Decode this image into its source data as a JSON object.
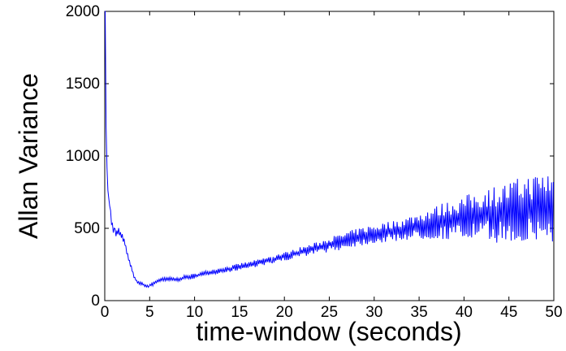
{
  "chart_data": {
    "type": "line",
    "title": "",
    "xlabel": "time-window (seconds)",
    "ylabel": "Allan Variance",
    "xlim": [
      0,
      50
    ],
    "ylim": [
      0,
      2000
    ],
    "xticks": [
      0,
      5,
      10,
      15,
      20,
      25,
      30,
      35,
      40,
      45,
      50
    ],
    "yticks": [
      0,
      500,
      1000,
      1500,
      2000
    ],
    "x_tick_labels": [
      "0",
      "5",
      "10",
      "15",
      "20",
      "25",
      "30",
      "35",
      "40",
      "45",
      "50"
    ],
    "y_tick_labels": [
      "0",
      "500",
      "1000",
      "1500",
      "2000"
    ],
    "grid": false,
    "series": [
      {
        "color": "#0000ff",
        "x": [
          0.05,
          0.15,
          0.3,
          0.5,
          0.8,
          1.0,
          1.3,
          1.6,
          2.0,
          2.3,
          2.6,
          3.0,
          3.3,
          3.6,
          4.0,
          4.3,
          4.6,
          5.0,
          5.5,
          6.0,
          7.0,
          8.0,
          9.0,
          10.0,
          11.0,
          12.0,
          13.0,
          14.0,
          15.0,
          16.0,
          17.0,
          18.0,
          19.0,
          20.0,
          21.0,
          22.0,
          23.0,
          24.0,
          25.0,
          26.0,
          27.0,
          28.0,
          29.0,
          30.0,
          31.0,
          32.0,
          33.0,
          34.0,
          35.0,
          36.0,
          37.0,
          38.0,
          39.0,
          40.0,
          41.0,
          42.0,
          43.0,
          44.0,
          45.0,
          46.0,
          47.0,
          48.0,
          49.0,
          50.0
        ],
        "y": [
          2000,
          1200,
          780,
          700,
          520,
          480,
          470,
          480,
          440,
          380,
          300,
          220,
          160,
          130,
          120,
          110,
          100,
          105,
          120,
          140,
          150,
          145,
          160,
          170,
          185,
          200,
          210,
          220,
          235,
          245,
          260,
          275,
          290,
          305,
          320,
          340,
          355,
          370,
          390,
          400,
          420,
          435,
          450,
          460,
          470,
          480,
          490,
          505,
          515,
          530,
          540,
          555,
          560,
          570,
          580,
          590,
          600,
          600,
          610,
          620,
          630,
          640,
          650,
          650
        ],
        "noise": [
          0,
          0,
          0,
          20,
          25,
          25,
          25,
          25,
          20,
          15,
          12,
          10,
          10,
          10,
          10,
          10,
          10,
          10,
          12,
          12,
          12,
          12,
          15,
          15,
          15,
          15,
          18,
          18,
          20,
          20,
          20,
          22,
          25,
          25,
          28,
          30,
          32,
          35,
          45,
          45,
          50,
          50,
          55,
          55,
          60,
          60,
          65,
          70,
          80,
          90,
          100,
          110,
          120,
          130,
          140,
          150,
          160,
          170,
          180,
          190,
          200,
          200,
          210,
          210
        ]
      }
    ]
  }
}
